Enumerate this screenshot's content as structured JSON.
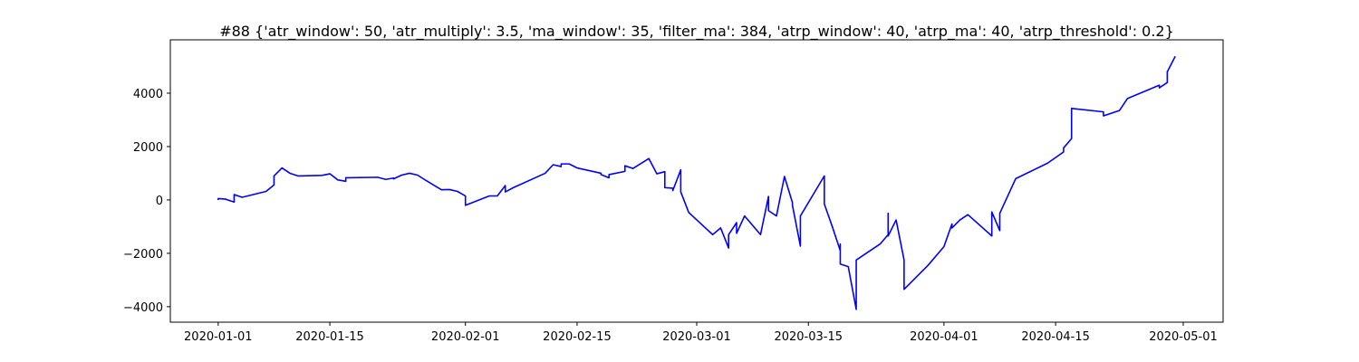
{
  "chart_data": {
    "type": "line",
    "title": "#88 {'atr_window': 50, 'atr_multiply': 3.5, 'ma_window': 35, 'filter_ma': 384, 'atrp_window': 40, 'atrp_ma': 40, 'atrp_threshold': 0.2}",
    "color": "#0000ff",
    "x": [
      "2020-01-01",
      "2020-01-01",
      "2020-01-02",
      "2020-01-02",
      "2020-01-03",
      "2020-01-03",
      "2020-01-04",
      "2020-01-07",
      "2020-01-08",
      "2020-01-08",
      "2020-01-09",
      "2020-01-10",
      "2020-01-11",
      "2020-01-14",
      "2020-01-15",
      "2020-01-16",
      "2020-01-17",
      "2020-01-17",
      "2020-01-21",
      "2020-01-22",
      "2020-01-23",
      "2020-01-23",
      "2020-01-24",
      "2020-01-25",
      "2020-01-26",
      "2020-01-27",
      "2020-01-28",
      "2020-01-29",
      "2020-01-30",
      "2020-01-31",
      "2020-02-01",
      "2020-02-01",
      "2020-02-04",
      "2020-02-05",
      "2020-02-06",
      "2020-02-06",
      "2020-02-07",
      "2020-02-11",
      "2020-02-12",
      "2020-02-13",
      "2020-02-13",
      "2020-02-14",
      "2020-02-15",
      "2020-02-18",
      "2020-02-18",
      "2020-02-19",
      "2020-02-19",
      "2020-02-21",
      "2020-02-21",
      "2020-02-22",
      "2020-02-24",
      "2020-02-25",
      "2020-02-26",
      "2020-02-26",
      "2020-02-27",
      "2020-02-27",
      "2020-02-28",
      "2020-02-28",
      "2020-02-29",
      "2020-03-03",
      "2020-03-04",
      "2020-03-05",
      "2020-03-05",
      "2020-03-06",
      "2020-03-06",
      "2020-03-07",
      "2020-03-09",
      "2020-03-10",
      "2020-03-10",
      "2020-03-11",
      "2020-03-12",
      "2020-03-13",
      "2020-03-13",
      "2020-03-14",
      "2020-03-14",
      "2020-03-17",
      "2020-03-17",
      "2020-03-18",
      "2020-03-19",
      "2020-03-19",
      "2020-03-19",
      "2020-03-20",
      "2020-03-21",
      "2020-03-21",
      "2020-03-24",
      "2020-03-25",
      "2020-03-25",
      "2020-03-25",
      "2020-03-26",
      "2020-03-27",
      "2020-03-27",
      "2020-03-30",
      "2020-04-01",
      "2020-04-02",
      "2020-04-02",
      "2020-04-03",
      "2020-04-04",
      "2020-04-07",
      "2020-04-07",
      "2020-04-08",
      "2020-04-08",
      "2020-04-10",
      "2020-04-14",
      "2020-04-16",
      "2020-04-16",
      "2020-04-17",
      "2020-04-17",
      "2020-04-21",
      "2020-04-21",
      "2020-04-23",
      "2020-04-24",
      "2020-04-28",
      "2020-04-28",
      "2020-04-29",
      "2020-04-29",
      "2020-04-30"
    ],
    "values": [
      0,
      50,
      30,
      20,
      -80,
      200,
      100,
      320,
      560,
      900,
      1200,
      1000,
      900,
      920,
      980,
      750,
      700,
      830,
      850,
      770,
      820,
      790,
      930,
      1000,
      930,
      740,
      560,
      380,
      390,
      320,
      150,
      -200,
      150,
      150,
      540,
      300,
      460,
      1000,
      1320,
      1250,
      1350,
      1350,
      1200,
      1000,
      950,
      830,
      950,
      1070,
      1280,
      1180,
      1550,
      980,
      1060,
      460,
      440,
      350,
      1130,
      300,
      -470,
      -1300,
      -1050,
      -1800,
      -1300,
      -850,
      -1250,
      -600,
      -1300,
      130,
      -400,
      -600,
      880,
      -100,
      -200,
      -1730,
      -600,
      900,
      -150,
      -1000,
      -1900,
      -1650,
      -2400,
      -2500,
      -4100,
      -2250,
      -1650,
      -1300,
      -500,
      -1350,
      -750,
      -2250,
      -3350,
      -2450,
      -1750,
      -900,
      -1050,
      -750,
      -550,
      -1350,
      -450,
      -1150,
      -500,
      800,
      1380,
      1800,
      1950,
      2300,
      3430,
      3300,
      3150,
      3350,
      3800,
      4300,
      4200,
      4400,
      4800,
      5380
    ],
    "xlim": [
      "2019-12-26",
      "2020-05-06"
    ],
    "xticks": [
      "2020-01-01",
      "2020-01-15",
      "2020-02-01",
      "2020-02-15",
      "2020-03-01",
      "2020-03-15",
      "2020-04-01",
      "2020-04-15",
      "2020-05-01"
    ],
    "ylim": [
      -4580,
      6000
    ],
    "yticks": [
      {
        "value": -4000,
        "label": "−4000"
      },
      {
        "value": -2000,
        "label": "−2000"
      },
      0,
      2000,
      4000
    ]
  }
}
